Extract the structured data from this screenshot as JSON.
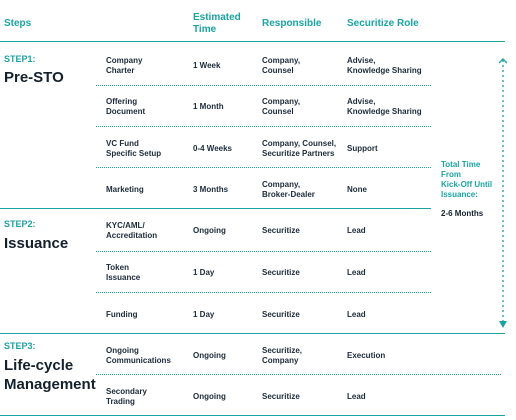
{
  "headers": {
    "steps": "Steps",
    "estimated_time": "Estimated\nTime",
    "responsible": "Responsible",
    "securitize_role": "Securitize Role"
  },
  "steps": [
    {
      "label": "STEP1:",
      "title": "Pre-STO",
      "rows": [
        {
          "task": "Company\nCharter",
          "time": "1 Week",
          "responsible": "Company,\nCounsel",
          "role": "Advise,\nKnowledge Sharing"
        },
        {
          "task": "Offering\nDocument",
          "time": "1 Month",
          "responsible": "Company,\nCounsel",
          "role": "Advise,\nKnowledge Sharing"
        },
        {
          "task": "VC Fund\nSpecific Setup",
          "time": "0-4 Weeks",
          "responsible": "Company, Counsel,\nSecuritize Partners",
          "role": "Support"
        },
        {
          "task": "Marketing",
          "time": "3 Months",
          "responsible": "Company,\nBroker-Dealer",
          "role": "None"
        }
      ]
    },
    {
      "label": "STEP2:",
      "title": "Issuance",
      "rows": [
        {
          "task": "KYC/AML/\nAccreditation",
          "time": "Ongoing",
          "responsible": "Securitize",
          "role": "Lead"
        },
        {
          "task": "Token\nIssuance",
          "time": "1 Day",
          "responsible": "Securitize",
          "role": "Lead"
        },
        {
          "task": "Funding",
          "time": "1 Day",
          "responsible": "Securitize",
          "role": "Lead"
        }
      ]
    },
    {
      "label": "STEP3:",
      "title": "Life-cycle\nManagement",
      "rows": [
        {
          "task": "Ongoing\nCommunications",
          "time": "Ongoing",
          "responsible": "Securitize,\nCompany",
          "role": "Execution"
        },
        {
          "task": "Secondary\nTrading",
          "time": "Ongoing",
          "responsible": "Securitize",
          "role": "Lead"
        }
      ]
    }
  ],
  "total_time": {
    "label": "Total Time\nFrom\nKick-Off Until\nIssuance:",
    "value": "2-6 Months"
  },
  "colors": {
    "accent": "#1aa3a3",
    "text": "#1c2b3a"
  }
}
